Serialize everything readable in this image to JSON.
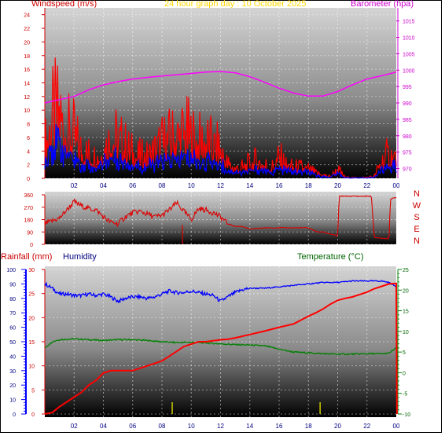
{
  "header": {
    "title": "24 hour graph day : 10 October 2025",
    "wind_label": "Windspeed (m/s)",
    "baro_label": "Barometer (hpa)",
    "rain_label": "Rainfall (mm)",
    "humidity_label": "Humidity",
    "temp_label": "Temperature (°C)"
  },
  "colors": {
    "wind": "#ff0000",
    "gust_avg": "#0000ff",
    "barometer": "#ff00ff",
    "direction": "#dd0000",
    "rain": "#ff0000",
    "humidity": "#0000ff",
    "temperature": "#008000",
    "rain_label": "#cc0000",
    "humidity_label": "#000080",
    "temp_label": "#006400",
    "title": "#ffd700"
  },
  "chart_data": [
    {
      "type": "line",
      "name": "wind-barometer",
      "x_ticks": [
        "02",
        "04",
        "06",
        "08",
        "10",
        "12",
        "14",
        "16",
        "18",
        "20",
        "22",
        "00"
      ],
      "x_range_hours": [
        0,
        24
      ],
      "y_left_label": "Windspeed (m/s)",
      "y_left_range": [
        0,
        25
      ],
      "y_left_ticks": [
        "0",
        "2",
        "4",
        "6",
        "8",
        "10",
        "12",
        "14",
        "16",
        "18",
        "20",
        "22",
        "24"
      ],
      "y_right_label": "Barometer (hpa)",
      "y_right_range": [
        967,
        1019
      ],
      "y_right_ticks": [
        "970",
        "975",
        "980",
        "985",
        "990",
        "995",
        "1000",
        "1005",
        "1010",
        "1015"
      ],
      "barometer": {
        "x": [
          0,
          1,
          2,
          3,
          4,
          5,
          6,
          7,
          8,
          9,
          10,
          11,
          12,
          13,
          14,
          15,
          16,
          17,
          18,
          19,
          20,
          21,
          22,
          23,
          24
        ],
        "y": [
          990,
          991,
          992,
          994,
          995.5,
          996.5,
          997.3,
          997.8,
          998.2,
          998.6,
          999,
          999.4,
          999.6,
          999.2,
          998,
          996.3,
          994.5,
          993,
          992.1,
          992.1,
          993.5,
          995.5,
          997.3,
          998.3,
          999.4
        ]
      },
      "wind_envelope": {
        "x": [
          0,
          0.5,
          1,
          1.5,
          2,
          2.5,
          3,
          3.5,
          4,
          4.5,
          5,
          5.5,
          6,
          6.5,
          7,
          7.5,
          8,
          8.5,
          9,
          9.5,
          10,
          10.5,
          11,
          11.5,
          12,
          12.5,
          13,
          13.5,
          14,
          14.5,
          15,
          15.5,
          16,
          16.5,
          17,
          17.5,
          18,
          18.5,
          19,
          19.5,
          20,
          20.5,
          21,
          21.5,
          22,
          22.5,
          23,
          23.5,
          24
        ],
        "max": [
          9,
          17,
          19,
          13,
          12,
          8,
          7,
          6,
          8,
          12,
          11,
          9,
          7,
          6,
          6,
          8,
          10,
          11,
          12,
          13,
          12,
          10,
          11,
          9,
          8,
          4,
          3,
          3,
          4,
          5,
          4,
          3,
          6,
          3.5,
          3,
          3,
          2.5,
          1.5,
          1,
          0.5,
          2.5,
          0.3,
          0.2,
          0.2,
          0.3,
          0.5,
          5,
          6.5,
          6
        ],
        "avg": [
          3.5,
          6,
          5.5,
          4.5,
          3.5,
          2.5,
          2.5,
          2,
          3,
          3.5,
          3.5,
          3,
          2.5,
          2,
          2,
          2.5,
          3,
          3,
          3,
          3.5,
          3.5,
          3,
          3,
          3,
          2.5,
          1.5,
          1.2,
          1.2,
          1.3,
          1.5,
          1.3,
          1.2,
          1.5,
          1.3,
          1.2,
          1,
          1,
          0.5,
          0.3,
          0.2,
          1,
          0.1,
          0.1,
          0.1,
          0.1,
          0.2,
          1.5,
          2.2,
          2
        ]
      }
    },
    {
      "type": "line",
      "name": "wind-direction",
      "y_range": [
        0,
        360
      ],
      "y_ticks": [
        "0",
        "90",
        "180",
        "270",
        "360"
      ],
      "compass_labels": [
        "N",
        "W",
        "S",
        "E",
        "N"
      ],
      "direction": {
        "x": [
          0,
          0.5,
          1,
          1.5,
          2,
          2.5,
          3,
          3.5,
          4,
          4.5,
          5,
          5.5,
          6,
          6.5,
          7,
          7.5,
          8,
          8.5,
          9,
          9.5,
          10,
          10.5,
          11,
          11.5,
          12,
          12.5,
          13,
          13.5,
          14,
          15,
          16,
          17,
          18,
          18.6,
          19,
          20,
          20.1,
          21,
          22,
          22.3,
          22.5,
          23.5,
          23.6,
          24
        ],
        "y": [
          150,
          170,
          190,
          250,
          310,
          280,
          260,
          250,
          200,
          160,
          150,
          200,
          230,
          240,
          220,
          200,
          210,
          250,
          300,
          240,
          180,
          260,
          250,
          230,
          200,
          150,
          130,
          130,
          110,
          120,
          120,
          120,
          120,
          90,
          90,
          60,
          350,
          350,
          350,
          350,
          50,
          40,
          330,
          340
        ]
      }
    },
    {
      "type": "line",
      "name": "rain-humidity-temperature",
      "x_ticks": [
        "02",
        "04",
        "06",
        "08",
        "10",
        "12",
        "14",
        "16",
        "18",
        "20",
        "22",
        "00"
      ],
      "rain_range": [
        0,
        30
      ],
      "rain_ticks": [
        "0",
        "5",
        "10",
        "15",
        "20",
        "25",
        "30"
      ],
      "humidity_range": [
        0,
        100
      ],
      "humidity_ticks": [
        "0",
        "10",
        "20",
        "30",
        "40",
        "50",
        "60",
        "70",
        "80",
        "90",
        "100"
      ],
      "temp_range": [
        -10,
        25
      ],
      "temp_ticks": [
        "-10",
        "-5",
        "0",
        "5",
        "10",
        "15",
        "20",
        "25"
      ],
      "rainfall": {
        "x": [
          0,
          0.5,
          1,
          1.5,
          2,
          2.5,
          3,
          3.5,
          4,
          4.5,
          5,
          5.5,
          6,
          6.5,
          7,
          7.5,
          8,
          8.5,
          9,
          9.5,
          10,
          10.5,
          11,
          11.5,
          12,
          12.5,
          13,
          14,
          15,
          16,
          17,
          17.5,
          18,
          18.5,
          19,
          19.5,
          20,
          20.5,
          21,
          21.5,
          22,
          22.5,
          23,
          23.5,
          24,
          24.05
        ],
        "y": [
          0,
          0.3,
          1.5,
          2.5,
          3.5,
          4.5,
          6,
          7,
          8.5,
          9,
          9,
          9,
          9,
          9.5,
          10,
          10.5,
          11,
          12,
          13,
          14,
          14.5,
          15,
          15,
          15.2,
          15.4,
          15.5,
          15.8,
          16.5,
          17.2,
          18,
          18.7,
          19.5,
          20.3,
          21,
          21.8,
          22.8,
          23.6,
          24,
          24.3,
          24.8,
          25.3,
          26,
          26.5,
          27,
          27.1,
          0
        ]
      },
      "humidity": {
        "x": [
          0,
          0.5,
          1,
          1.5,
          2,
          2.5,
          3,
          3.5,
          4,
          4.5,
          5,
          5.5,
          6,
          6.5,
          7,
          7.5,
          8,
          8.5,
          9,
          9.5,
          10,
          10.5,
          11,
          11.5,
          12,
          12.5,
          13,
          13.5,
          14,
          15,
          16,
          17,
          18,
          19,
          20,
          21,
          22,
          22.5,
          23,
          23.5,
          24
        ],
        "y": [
          90,
          87,
          83,
          83,
          82,
          82,
          83,
          82,
          83,
          81,
          78,
          80,
          81,
          81,
          80,
          81,
          83,
          85,
          84,
          84,
          85,
          84,
          83,
          82,
          78,
          81,
          84,
          86,
          87,
          87,
          88,
          89,
          90,
          91,
          91,
          92,
          92,
          92,
          92,
          91,
          88
        ]
      },
      "temperature": {
        "x": [
          0,
          0.5,
          1,
          2,
          3,
          4,
          5,
          6,
          7,
          8,
          9,
          10,
          11,
          12,
          13,
          14,
          15,
          16,
          17,
          18,
          19,
          20,
          21,
          22,
          23,
          23.5,
          24
        ],
        "y": [
          6,
          7.5,
          8,
          8.2,
          8,
          7.8,
          8,
          8,
          7.8,
          7.5,
          7.3,
          7.4,
          7.2,
          7,
          6.8,
          6.7,
          6.5,
          5.7,
          5,
          4.8,
          4.6,
          4.5,
          4.5,
          4.6,
          4.6,
          4.7,
          6
        ]
      },
      "rain_markers_hours": [
        8.7,
        18.8
      ]
    }
  ]
}
